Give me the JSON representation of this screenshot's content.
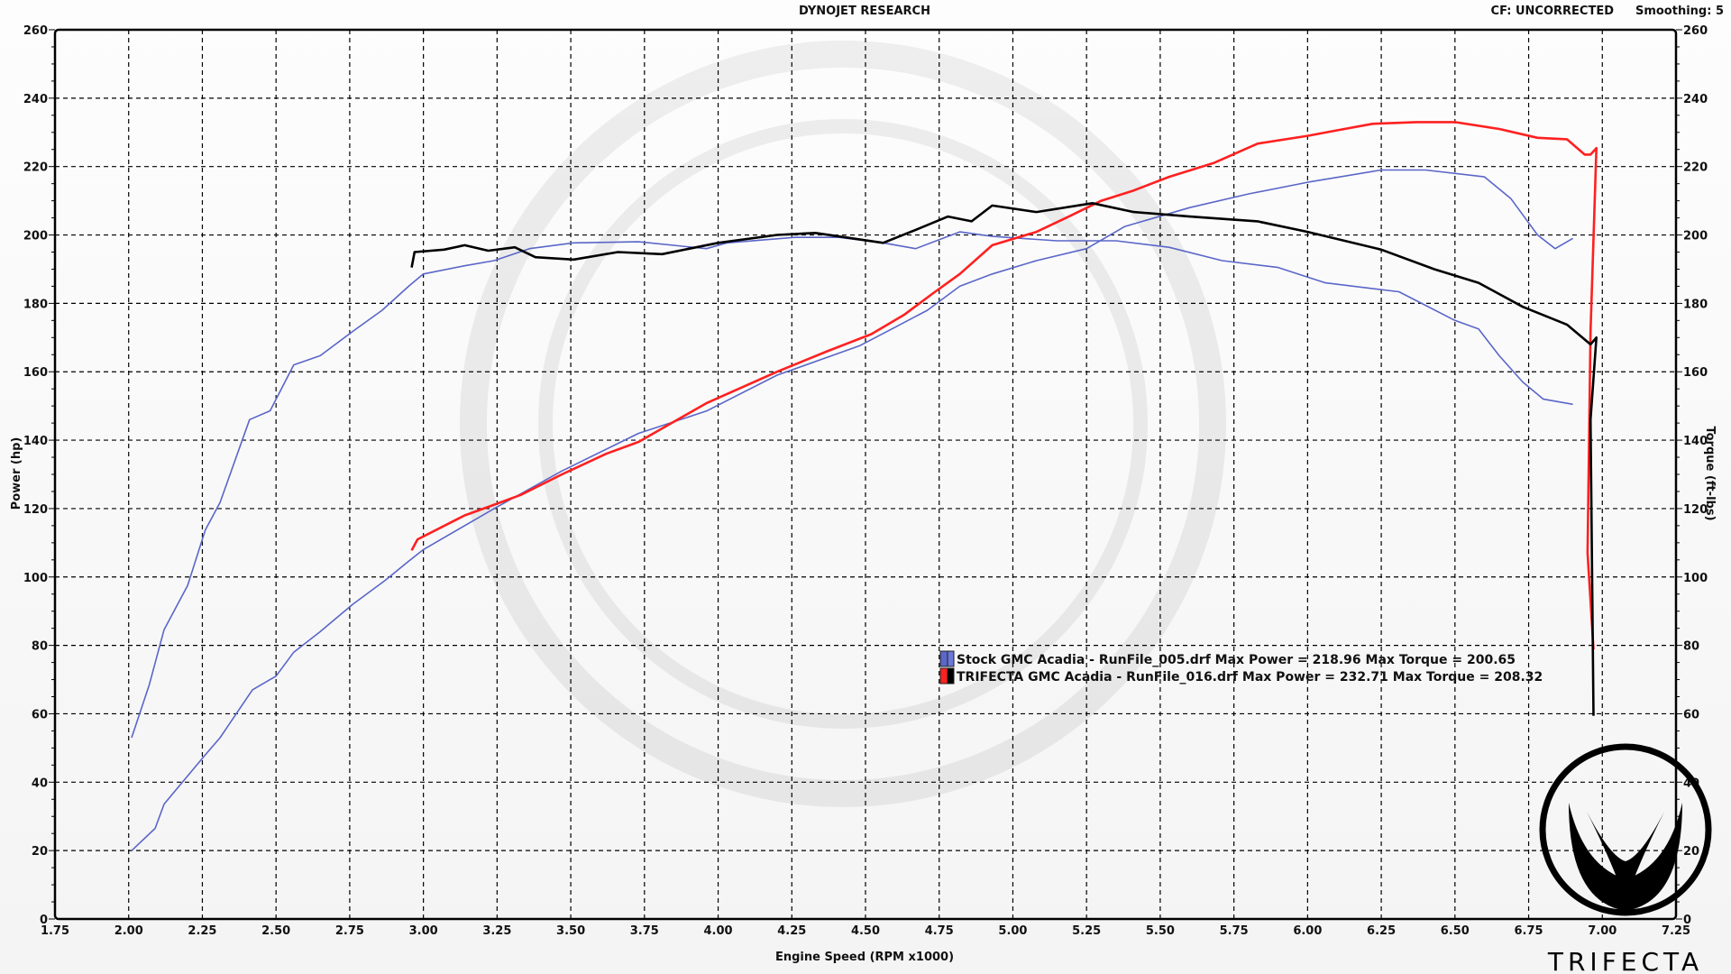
{
  "header": {
    "title": "DYNOJET RESEARCH",
    "cf": "CF: UNCORRECTED",
    "smoothing": "Smoothing: 5"
  },
  "logo": {
    "text": "TRIFECTA"
  },
  "chart_data": {
    "type": "line",
    "xlabel": "Engine Speed (RPM x1000)",
    "ylabel": "Power (hp)",
    "y2label": "Torque (ft-lbs)",
    "xlim": [
      1.75,
      7.25
    ],
    "ylim": [
      0,
      260
    ],
    "y2lim": [
      0,
      260
    ],
    "grid": true,
    "legend_position": "center-right",
    "xticks": [
      "1.75",
      "2.00",
      "2.25",
      "2.50",
      "2.75",
      "3.00",
      "3.25",
      "3.50",
      "3.75",
      "4.00",
      "4.25",
      "4.50",
      "4.75",
      "5.00",
      "5.25",
      "5.50",
      "5.75",
      "6.00",
      "6.25",
      "6.50",
      "6.75",
      "7.00",
      "7.25"
    ],
    "yticks": [
      "0",
      "20",
      "40",
      "60",
      "80",
      "100",
      "120",
      "140",
      "160",
      "180",
      "200",
      "220",
      "240",
      "260"
    ],
    "legend": [
      {
        "label": "Stock GMC Acadia - RunFile_005.drf Max Power = 218.96 Max Torque = 200.65",
        "colors": [
          "#5a66c8",
          "#6b78d8"
        ]
      },
      {
        "label": "TRIFECTA GMC Acadia - RunFile_016.drf Max Power = 232.71 Max Torque = 208.32",
        "colors": [
          "#ff2020",
          "#000000"
        ]
      }
    ],
    "series": [
      {
        "run": "Stock power",
        "color": "#5a66c8",
        "points": [
          [
            2.01,
            20
          ],
          [
            2.09,
            26.5
          ],
          [
            2.12,
            33.6
          ],
          [
            2.26,
            48
          ],
          [
            2.31,
            53
          ],
          [
            2.42,
            67
          ],
          [
            2.5,
            71
          ],
          [
            2.56,
            78
          ],
          [
            2.65,
            84
          ],
          [
            2.76,
            92
          ],
          [
            2.87,
            99
          ],
          [
            2.95,
            104.6
          ],
          [
            3.0,
            108
          ],
          [
            3.24,
            120
          ],
          [
            3.47,
            131
          ],
          [
            3.73,
            142
          ],
          [
            3.96,
            148.5
          ],
          [
            4.2,
            159
          ],
          [
            4.48,
            167.6
          ],
          [
            4.6,
            173
          ],
          [
            4.71,
            178
          ],
          [
            4.82,
            185
          ],
          [
            4.93,
            188.6
          ],
          [
            5.08,
            192.5
          ],
          [
            5.25,
            196
          ],
          [
            5.38,
            202.5
          ],
          [
            5.6,
            208
          ],
          [
            5.8,
            212
          ],
          [
            6.0,
            215.4
          ],
          [
            6.25,
            219
          ],
          [
            6.4,
            219
          ],
          [
            6.6,
            217
          ],
          [
            6.69,
            210.6
          ],
          [
            6.78,
            200
          ],
          [
            6.84,
            196
          ],
          [
            6.9,
            199
          ]
        ]
      },
      {
        "run": "Stock torque",
        "color": "#5a66c8",
        "points": [
          [
            2.01,
            53
          ],
          [
            2.07,
            68.5
          ],
          [
            2.12,
            84.6
          ],
          [
            2.2,
            97.5
          ],
          [
            2.26,
            113.7
          ],
          [
            2.31,
            121.8
          ],
          [
            2.41,
            146
          ],
          [
            2.48,
            148.6
          ],
          [
            2.56,
            162
          ],
          [
            2.65,
            164.7
          ],
          [
            2.76,
            171.8
          ],
          [
            2.86,
            178
          ],
          [
            2.95,
            185
          ],
          [
            3.0,
            188.6
          ],
          [
            3.14,
            191
          ],
          [
            3.24,
            192.5
          ],
          [
            3.36,
            196
          ],
          [
            3.51,
            197.7
          ],
          [
            3.73,
            198
          ],
          [
            3.96,
            196
          ],
          [
            4.03,
            197.7
          ],
          [
            4.26,
            199.3
          ],
          [
            4.41,
            199.3
          ],
          [
            4.56,
            197.7
          ],
          [
            4.67,
            196
          ],
          [
            4.82,
            200.9
          ],
          [
            4.93,
            199.6
          ],
          [
            5.15,
            198.3
          ],
          [
            5.35,
            198.3
          ],
          [
            5.53,
            196.4
          ],
          [
            5.71,
            192.5
          ],
          [
            5.9,
            190.5
          ],
          [
            6.06,
            186
          ],
          [
            6.31,
            183.4
          ],
          [
            6.5,
            175
          ],
          [
            6.58,
            172.5
          ],
          [
            6.65,
            164.7
          ],
          [
            6.73,
            157
          ],
          [
            6.8,
            152
          ],
          [
            6.9,
            150.5
          ]
        ]
      },
      {
        "run": "Trifecta power",
        "color": "#ff2020",
        "points": [
          [
            2.96,
            107.8
          ],
          [
            2.98,
            111
          ],
          [
            3.14,
            118
          ],
          [
            3.23,
            120.8
          ],
          [
            3.33,
            124
          ],
          [
            3.47,
            130
          ],
          [
            3.62,
            136
          ],
          [
            3.73,
            139.5
          ],
          [
            3.96,
            150.8
          ],
          [
            4.2,
            160
          ],
          [
            4.37,
            166
          ],
          [
            4.52,
            171
          ],
          [
            4.63,
            176.6
          ],
          [
            4.73,
            183
          ],
          [
            4.82,
            188.6
          ],
          [
            4.93,
            197
          ],
          [
            5.08,
            200.9
          ],
          [
            5.19,
            205.4
          ],
          [
            5.3,
            210
          ],
          [
            5.41,
            213
          ],
          [
            5.53,
            217
          ],
          [
            5.68,
            221
          ],
          [
            5.83,
            226.7
          ],
          [
            6.0,
            229
          ],
          [
            6.1,
            230.6
          ],
          [
            6.22,
            232.5
          ],
          [
            6.37,
            233
          ],
          [
            6.5,
            233
          ],
          [
            6.65,
            231
          ],
          [
            6.78,
            228.4
          ],
          [
            6.88,
            228
          ],
          [
            6.94,
            223.5
          ],
          [
            6.96,
            223.5
          ],
          [
            6.98,
            225.4
          ],
          [
            6.96,
            171.8
          ],
          [
            6.95,
            107
          ],
          [
            6.97,
            78.8
          ]
        ]
      },
      {
        "run": "Trifecta torque",
        "color": "#000000",
        "points": [
          [
            2.96,
            190.5
          ],
          [
            2.97,
            195
          ],
          [
            3.07,
            195.7
          ],
          [
            3.14,
            197
          ],
          [
            3.22,
            195.4
          ],
          [
            3.31,
            196.4
          ],
          [
            3.38,
            193.5
          ],
          [
            3.51,
            192.8
          ],
          [
            3.66,
            195
          ],
          [
            3.81,
            194.4
          ],
          [
            4.0,
            197.7
          ],
          [
            4.2,
            200
          ],
          [
            4.33,
            200.6
          ],
          [
            4.56,
            197.7
          ],
          [
            4.67,
            201.5
          ],
          [
            4.78,
            205.4
          ],
          [
            4.86,
            204
          ],
          [
            4.93,
            208.6
          ],
          [
            5.08,
            206.7
          ],
          [
            5.27,
            209.3
          ],
          [
            5.41,
            206.7
          ],
          [
            5.6,
            205.4
          ],
          [
            5.83,
            204
          ],
          [
            6.0,
            200.9
          ],
          [
            6.25,
            195.7
          ],
          [
            6.43,
            190
          ],
          [
            6.58,
            186
          ],
          [
            6.73,
            179
          ],
          [
            6.88,
            173.8
          ],
          [
            6.96,
            168
          ],
          [
            6.98,
            170
          ],
          [
            6.96,
            146
          ],
          [
            6.97,
            59.4
          ]
        ]
      }
    ]
  }
}
